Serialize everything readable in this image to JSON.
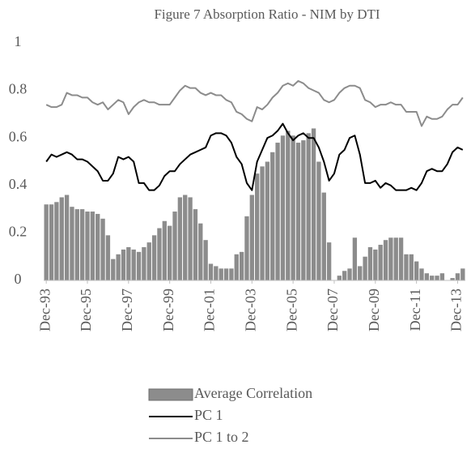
{
  "chart_data": {
    "type": "bar",
    "title": "Figure 7 Absorption Ratio - NIM by DTI",
    "categories": [
      "Dec-93",
      null,
      null,
      null,
      null,
      null,
      null,
      null,
      "Dec-95",
      null,
      null,
      null,
      null,
      null,
      null,
      null,
      "Dec-97",
      null,
      null,
      null,
      null,
      null,
      null,
      null,
      "Dec-99",
      null,
      null,
      null,
      null,
      null,
      null,
      null,
      "Dec-01",
      null,
      null,
      null,
      null,
      null,
      null,
      null,
      "Dec-03",
      null,
      null,
      null,
      null,
      null,
      null,
      null,
      "Dec-05",
      null,
      null,
      null,
      null,
      null,
      null,
      null,
      "Dec-07",
      null,
      null,
      null,
      null,
      null,
      null,
      null,
      "Dec-09",
      null,
      null,
      null,
      null,
      null,
      null,
      null,
      "Dec-11",
      null,
      null,
      null,
      null,
      null,
      null,
      null,
      "Dec-13",
      null
    ],
    "series": [
      {
        "name": "Average Correlation",
        "type": "bar",
        "color": "#8c8c8c",
        "values": [
          0.32,
          0.32,
          0.33,
          0.35,
          0.36,
          0.31,
          0.3,
          0.3,
          0.29,
          0.29,
          0.28,
          0.26,
          0.19,
          0.09,
          0.11,
          0.13,
          0.14,
          0.13,
          0.12,
          0.14,
          0.16,
          0.19,
          0.22,
          0.25,
          0.23,
          0.29,
          0.35,
          0.36,
          0.35,
          0.3,
          0.24,
          0.17,
          0.07,
          0.06,
          0.05,
          0.05,
          0.05,
          0.11,
          0.12,
          0.27,
          0.36,
          0.45,
          0.48,
          0.5,
          0.54,
          0.58,
          0.61,
          0.63,
          0.61,
          0.58,
          0.59,
          0.62,
          0.64,
          0.5,
          0.37,
          0.16,
          0.0,
          0.02,
          0.04,
          0.05,
          0.18,
          0.06,
          0.1,
          0.14,
          0.13,
          0.15,
          0.17,
          0.18,
          0.18,
          0.18,
          0.11,
          0.11,
          0.08,
          0.05,
          0.03,
          0.02,
          0.02,
          0.03,
          0.0,
          0.01,
          0.03,
          0.05
        ]
      },
      {
        "name": "PC 1",
        "type": "line",
        "color": "#000000",
        "values": [
          0.5,
          0.53,
          0.52,
          0.53,
          0.54,
          0.53,
          0.51,
          0.51,
          0.5,
          0.48,
          0.46,
          0.42,
          0.42,
          0.45,
          0.52,
          0.51,
          0.52,
          0.5,
          0.41,
          0.41,
          0.38,
          0.38,
          0.4,
          0.44,
          0.46,
          0.46,
          0.49,
          0.51,
          0.53,
          0.54,
          0.55,
          0.56,
          0.61,
          0.62,
          0.62,
          0.61,
          0.58,
          0.52,
          0.49,
          0.41,
          0.38,
          0.5,
          0.55,
          0.6,
          0.61,
          0.63,
          0.66,
          0.62,
          0.59,
          0.61,
          0.62,
          0.6,
          0.6,
          0.56,
          0.5,
          0.42,
          0.45,
          0.53,
          0.55,
          0.6,
          0.61,
          0.53,
          0.41,
          0.41,
          0.42,
          0.39,
          0.41,
          0.4,
          0.38,
          0.38,
          0.38,
          0.39,
          0.38,
          0.41,
          0.46,
          0.47,
          0.46,
          0.46,
          0.49,
          0.54,
          0.56,
          0.55
        ]
      },
      {
        "name": "PC 1 to 2",
        "type": "line",
        "color": "#8c8c8c",
        "values": [
          0.74,
          0.73,
          0.73,
          0.74,
          0.79,
          0.78,
          0.78,
          0.77,
          0.77,
          0.75,
          0.74,
          0.75,
          0.72,
          0.74,
          0.76,
          0.75,
          0.7,
          0.73,
          0.75,
          0.76,
          0.75,
          0.75,
          0.74,
          0.74,
          0.74,
          0.77,
          0.8,
          0.82,
          0.81,
          0.81,
          0.79,
          0.78,
          0.79,
          0.78,
          0.78,
          0.76,
          0.75,
          0.71,
          0.7,
          0.68,
          0.67,
          0.73,
          0.72,
          0.74,
          0.77,
          0.79,
          0.82,
          0.83,
          0.82,
          0.84,
          0.83,
          0.81,
          0.8,
          0.79,
          0.76,
          0.75,
          0.76,
          0.79,
          0.81,
          0.82,
          0.82,
          0.81,
          0.76,
          0.75,
          0.73,
          0.74,
          0.74,
          0.75,
          0.74,
          0.74,
          0.71,
          0.71,
          0.71,
          0.65,
          0.69,
          0.68,
          0.68,
          0.69,
          0.72,
          0.74,
          0.74,
          0.77
        ]
      }
    ],
    "ylim": [
      0,
      1
    ],
    "yticks": [
      0,
      0.2,
      0.4,
      0.6,
      0.8,
      1
    ],
    "grid": false,
    "legend": "bottom"
  }
}
